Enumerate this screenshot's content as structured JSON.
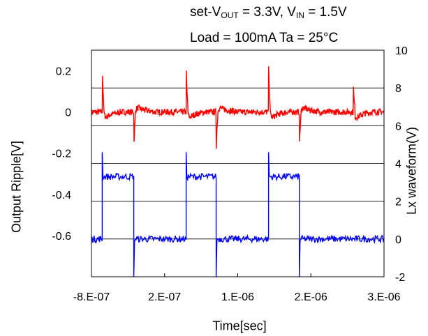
{
  "chart_data": {
    "type": "line",
    "title_line1": {
      "parts": [
        "set-V",
        "OUT",
        " = 3.3V,  V",
        "IN",
        " = 1.5V"
      ]
    },
    "title_line2": "Load = 100mA  Ta = 25°C",
    "xlabel": "Time[sec]",
    "ylabel_left": "Output   Ripple[V]",
    "ylabel_right": "Lx   waveform(V)",
    "x_ticks": [
      "-8.E-07",
      "2.E-07",
      "1.E-06",
      "2.E-06",
      "3.E-06"
    ],
    "y_left_ticks": [
      "0.2",
      "0",
      "-0.2",
      "-0.4",
      "-0.6"
    ],
    "y_right_ticks": [
      "10",
      "8",
      "6",
      "4",
      "2",
      "0",
      "-2"
    ],
    "xlim": [
      -8e-07,
      3e-06
    ],
    "ylim_left": [
      -0.8,
      0.3
    ],
    "ylim_right": [
      -2,
      10
    ],
    "grid": "horizontal",
    "colors": {
      "ripple": "#ff0000",
      "lx": "#0000ff"
    },
    "series": [
      {
        "axis": "left",
        "events": [
          {
            "x": -6.6e-07,
            "type": "spike_up",
            "peak": 0.27
          },
          {
            "x": -2.5e-07,
            "type": "spike_down",
            "peak": -0.21
          },
          {
            "x": 4.3e-07,
            "type": "spike_up",
            "peak": 0.26
          },
          {
            "x": 8.2e-07,
            "type": "spike_down",
            "peak": -0.21
          },
          {
            "x": 1.5e-06,
            "type": "spike_up",
            "peak": 0.27
          },
          {
            "x": 1.9e-06,
            "type": "spike_down",
            "peak": -0.21
          },
          {
            "x": 2.6e-06,
            "type": "spike_up",
            "peak": 0.17
          }
        ],
        "baseline": 0.0
      },
      {
        "axis": "right",
        "segments": [
          {
            "x0": -8e-07,
            "x1": -6.6e-07,
            "level": 0
          },
          {
            "x0": -6.6e-07,
            "x1": -2.5e-07,
            "level": 3.3
          },
          {
            "x0": -2.5e-07,
            "x1": 4.3e-07,
            "level": 0
          },
          {
            "x0": 4.3e-07,
            "x1": 8.2e-07,
            "level": 3.3
          },
          {
            "x0": 8.2e-07,
            "x1": 1.5e-06,
            "level": 0
          },
          {
            "x0": 1.5e-06,
            "x1": 1.9e-06,
            "level": 3.3
          },
          {
            "x0": 1.9e-06,
            "x1": 3e-06,
            "level": 0
          }
        ]
      }
    ]
  }
}
